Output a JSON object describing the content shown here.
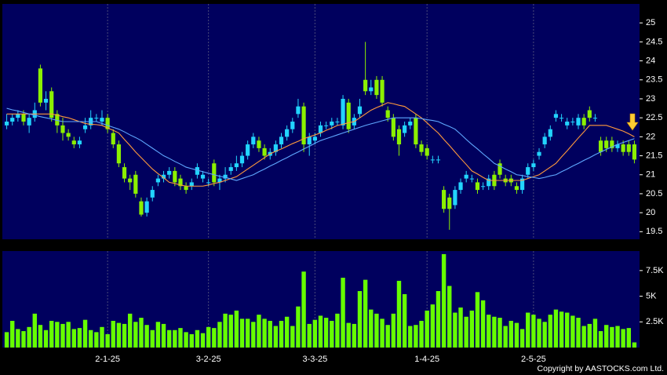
{
  "chart_data": [
    {
      "type": "candlestick",
      "open": [
        22.3,
        22.4,
        22.5,
        22.6,
        22.3,
        22.5,
        23.8,
        22.9,
        23.2,
        22.6,
        22.3,
        22.1,
        21.9,
        21.8,
        22.2,
        22.3,
        22.5,
        22.4,
        22.5,
        22.1,
        21.8,
        21.2,
        20.9,
        21.0,
        20.3,
        20.0,
        20.4,
        20.8,
        20.9,
        21.0,
        21.1,
        20.9,
        20.7,
        20.7,
        21.0,
        20.9,
        20.8,
        21.3,
        20.8,
        20.9,
        21.1,
        21.2,
        21.3,
        21.5,
        21.8,
        21.9,
        21.7,
        21.5,
        21.6,
        21.8,
        22.0,
        22.2,
        22.6,
        22.8,
        21.8,
        21.9,
        22.1,
        22.3,
        22.3,
        22.4,
        22.3,
        22.9,
        22.3,
        22.6,
        23.5,
        23.2,
        23.5,
        23.5,
        22.7,
        22.5,
        22.2,
        22.1,
        22.3,
        22.5,
        21.8,
        21.7,
        21.4,
        21.4,
        20.6,
        20.4,
        20.2,
        20.6,
        20.9,
        20.9,
        20.8,
        20.7,
        20.7,
        21.0,
        21.3,
        20.9,
        20.9,
        20.7,
        20.6,
        21.0,
        21.2,
        21.5,
        21.8,
        22.0,
        22.5,
        22.5,
        22.3,
        22.4,
        22.3,
        22.5,
        22.7,
        22.5,
        21.9,
        21.9,
        21.9,
        21.7,
        21.8,
        21.8,
        21.8
      ],
      "high": [
        22.6,
        22.6,
        22.7,
        22.7,
        22.6,
        22.9,
        23.9,
        23.2,
        23.3,
        22.7,
        22.5,
        22.2,
        22.0,
        22.0,
        22.5,
        22.7,
        22.6,
        22.7,
        22.6,
        22.2,
        21.9,
        21.3,
        21.0,
        21.1,
        20.4,
        20.4,
        20.7,
        21.0,
        21.1,
        21.2,
        21.2,
        21.0,
        20.8,
        20.9,
        21.3,
        21.1,
        20.9,
        21.4,
        21.0,
        21.2,
        21.3,
        21.5,
        21.6,
        21.9,
        22.1,
        22.0,
        21.8,
        21.7,
        21.9,
        22.1,
        22.3,
        22.5,
        23.0,
        22.9,
        22.1,
        22.1,
        22.4,
        22.4,
        22.5,
        22.5,
        23.1,
        23.0,
        22.6,
        23.0,
        24.5,
        23.5,
        23.6,
        23.6,
        22.8,
        22.6,
        22.3,
        22.4,
        22.5,
        22.6,
        21.9,
        21.8,
        21.5,
        21.5,
        20.7,
        20.5,
        20.7,
        20.9,
        21.1,
        21.0,
        20.9,
        20.8,
        21.0,
        21.1,
        21.4,
        21.0,
        21.0,
        20.8,
        21.0,
        21.3,
        21.4,
        21.7,
        22.1,
        22.3,
        22.7,
        22.6,
        22.5,
        22.5,
        22.6,
        22.6,
        22.8,
        22.6,
        22.0,
        22.0,
        22.0,
        21.9,
        21.9,
        21.9,
        21.9
      ],
      "low": [
        22.2,
        22.3,
        22.4,
        22.3,
        22.1,
        22.4,
        22.8,
        22.7,
        22.4,
        22.1,
        21.9,
        21.9,
        21.7,
        21.7,
        22.1,
        22.2,
        22.4,
        22.3,
        22.1,
        21.7,
        21.2,
        20.8,
        20.6,
        20.4,
        19.9,
        19.9,
        20.3,
        20.7,
        20.8,
        20.9,
        20.7,
        20.6,
        20.5,
        20.6,
        20.9,
        20.8,
        20.7,
        20.7,
        20.6,
        20.8,
        21.0,
        21.1,
        21.2,
        21.4,
        21.7,
        21.6,
        21.4,
        21.4,
        21.5,
        21.7,
        21.9,
        22.1,
        22.5,
        21.6,
        21.5,
        21.8,
        22.0,
        22.2,
        22.2,
        22.3,
        22.2,
        22.1,
        22.2,
        22.5,
        23.1,
        23.1,
        23.0,
        22.8,
        22.4,
        21.9,
        21.5,
        22.0,
        22.2,
        21.7,
        21.5,
        21.4,
        21.3,
        21.3,
        20.0,
        19.55,
        20.1,
        20.5,
        20.8,
        20.8,
        20.5,
        20.6,
        20.6,
        20.6,
        20.9,
        20.7,
        20.7,
        20.5,
        20.5,
        20.9,
        21.1,
        21.4,
        21.7,
        21.9,
        22.4,
        22.4,
        22.2,
        22.3,
        22.2,
        22.2,
        22.4,
        22.4,
        21.5,
        21.6,
        21.6,
        21.6,
        21.5,
        21.5,
        21.3
      ],
      "close": [
        22.4,
        22.5,
        22.6,
        22.4,
        22.5,
        22.7,
        22.9,
        23.0,
        22.5,
        22.3,
        22.1,
        22.0,
        21.8,
        21.9,
        22.3,
        22.5,
        22.5,
        22.5,
        22.2,
        21.8,
        21.3,
        20.9,
        20.8,
        20.5,
        19.95,
        20.3,
        20.6,
        20.9,
        21.0,
        21.1,
        20.8,
        20.7,
        20.6,
        20.8,
        21.2,
        21.0,
        20.8,
        20.8,
        20.9,
        21.0,
        21.2,
        21.3,
        21.5,
        21.8,
        22.0,
        21.7,
        21.5,
        21.6,
        21.8,
        22.0,
        22.2,
        22.4,
        22.8,
        21.8,
        22.0,
        22.0,
        22.3,
        22.3,
        22.4,
        22.4,
        23.0,
        22.2,
        22.5,
        22.8,
        23.2,
        23.3,
        23.1,
        22.9,
        22.5,
        22.0,
        21.8,
        22.3,
        22.4,
        21.8,
        21.6,
        21.5,
        21.4,
        21.4,
        20.1,
        20.1,
        20.6,
        20.8,
        21.0,
        20.9,
        20.6,
        20.7,
        20.9,
        20.7,
        21.0,
        20.8,
        20.8,
        20.6,
        20.9,
        21.2,
        21.3,
        21.6,
        22.0,
        22.2,
        22.6,
        22.5,
        22.4,
        22.4,
        22.5,
        22.3,
        22.5,
        22.5,
        21.6,
        21.7,
        21.7,
        21.8,
        21.6,
        21.6,
        21.4
      ],
      "up_color": "#22d4ff",
      "down_color": "#8cf000",
      "series": [
        {
          "color": "#ff9a3c",
          "values": [
            22.6,
            22.6,
            22.6,
            22.6,
            22.6,
            22.6,
            22.6,
            22.6,
            22.6,
            22.57,
            22.53,
            22.5,
            22.45,
            22.4,
            22.35,
            22.33,
            22.32,
            22.3,
            22.23,
            22.17,
            22.1,
            21.93,
            21.77,
            21.6,
            21.45,
            21.3,
            21.15,
            21.03,
            20.92,
            20.8,
            20.77,
            20.73,
            20.7,
            20.7,
            20.7,
            20.7,
            20.73,
            20.77,
            20.8,
            20.85,
            20.9,
            20.95,
            21.05,
            21.15,
            21.25,
            21.35,
            21.45,
            21.55,
            21.62,
            21.68,
            21.75,
            21.82,
            21.88,
            21.95,
            22.0,
            22.05,
            22.1,
            22.17,
            22.23,
            22.3,
            22.33,
            22.37,
            22.4,
            22.5,
            22.6,
            22.7,
            22.77,
            22.83,
            22.9,
            22.87,
            22.83,
            22.8,
            22.7,
            22.6,
            22.5,
            22.37,
            22.23,
            22.1,
            21.93,
            21.77,
            21.6,
            21.43,
            21.27,
            21.1,
            21.02,
            20.93,
            20.85,
            20.85,
            20.85,
            20.85,
            20.85,
            20.85,
            20.85,
            20.9,
            20.95,
            21.0,
            21.1,
            21.2,
            21.3,
            21.47,
            21.63,
            21.8,
            21.97,
            22.13,
            22.3,
            22.3,
            22.3,
            22.3,
            22.25,
            22.2,
            22.15,
            22.08,
            22.0
          ]
        },
        {
          "color": "#5fa8ff",
          "values": [
            22.75,
            22.71,
            22.68,
            22.64,
            22.6,
            22.57,
            22.53,
            22.5,
            22.47,
            22.43,
            22.4,
            22.4,
            22.4,
            22.4,
            22.4,
            22.4,
            22.4,
            22.35,
            22.3,
            22.25,
            22.2,
            22.13,
            22.05,
            21.98,
            21.9,
            21.8,
            21.7,
            21.6,
            21.5,
            21.43,
            21.35,
            21.28,
            21.2,
            21.16,
            21.12,
            21.08,
            21.04,
            21.0,
            20.96,
            20.93,
            20.89,
            20.85,
            20.9,
            20.95,
            21.0,
            21.08,
            21.15,
            21.23,
            21.3,
            21.38,
            21.45,
            21.53,
            21.6,
            21.68,
            21.75,
            21.83,
            21.9,
            21.95,
            22.0,
            22.05,
            22.1,
            22.15,
            22.2,
            22.25,
            22.3,
            22.34,
            22.38,
            22.42,
            22.46,
            22.5,
            22.5,
            22.5,
            22.5,
            22.5,
            22.48,
            22.45,
            22.43,
            22.4,
            22.33,
            22.27,
            22.2,
            22.07,
            21.93,
            21.8,
            21.68,
            21.55,
            21.43,
            21.3,
            21.23,
            21.15,
            21.08,
            21.0,
            20.98,
            20.95,
            20.93,
            20.9,
            20.93,
            20.97,
            21.0,
            21.08,
            21.15,
            21.23,
            21.3,
            21.38,
            21.45,
            21.53,
            21.6,
            21.67,
            21.73,
            21.8,
            21.85,
            21.9,
            21.95
          ]
        }
      ],
      "ylim": [
        19.3,
        25.5
      ],
      "yticks": [
        19.5,
        20,
        20.5,
        21,
        21.5,
        22,
        22.5,
        23,
        23.5,
        24,
        24.5,
        25
      ],
      "grid": true
    },
    {
      "type": "bar",
      "categories": [
        null,
        null,
        null,
        null,
        null,
        null,
        null,
        null,
        null,
        null,
        null,
        null,
        null,
        null,
        null,
        null,
        null,
        null,
        "2-1-25",
        null,
        null,
        null,
        null,
        null,
        null,
        null,
        null,
        null,
        null,
        null,
        null,
        null,
        null,
        null,
        null,
        null,
        "3-2-25",
        null,
        null,
        null,
        null,
        null,
        null,
        null,
        null,
        null,
        null,
        null,
        null,
        null,
        null,
        null,
        null,
        null,
        null,
        "3-3-25",
        null,
        null,
        null,
        null,
        null,
        null,
        null,
        null,
        null,
        null,
        null,
        null,
        null,
        null,
        null,
        null,
        null,
        null,
        null,
        "1-4-25",
        null,
        null,
        null,
        null,
        null,
        null,
        null,
        null,
        null,
        null,
        null,
        null,
        null,
        null,
        null,
        null,
        null,
        null,
        "2-5-25",
        null,
        null,
        null,
        null,
        null,
        null,
        null,
        null,
        null,
        null,
        null,
        null,
        null,
        null,
        null,
        null,
        null,
        null
      ],
      "values": [
        1500,
        2600,
        1800,
        1600,
        2000,
        3300,
        2200,
        1700,
        2600,
        2500,
        2300,
        2500,
        1800,
        1900,
        2700,
        1700,
        1500,
        2000,
        1300,
        2600,
        2400,
        2300,
        3300,
        2500,
        2900,
        2200,
        1700,
        2500,
        2300,
        1700,
        1700,
        1900,
        1500,
        1300,
        1700,
        1400,
        2000,
        1900,
        2500,
        3300,
        3200,
        3600,
        2800,
        2800,
        2500,
        3200,
        2800,
        2600,
        2100,
        2600,
        3000,
        2100,
        4000,
        7400,
        2300,
        2700,
        3100,
        2900,
        2600,
        3300,
        6800,
        2400,
        2300,
        5500,
        6600,
        3700,
        3300,
        2800,
        2200,
        3300,
        6500,
        5200,
        2100,
        2200,
        2600,
        3600,
        4200,
        5500,
        9100,
        6000,
        3400,
        3900,
        3000,
        3600,
        5400,
        4600,
        3200,
        3000,
        2900,
        2100,
        2600,
        2400,
        1800,
        3400,
        3200,
        2800,
        2500,
        3200,
        3700,
        3500,
        3400,
        3100,
        2900,
        2100,
        2300,
        2800,
        1600,
        2200,
        2000,
        2100,
        1800,
        1900,
        500
      ],
      "color": "#66ff00",
      "ylim": [
        0,
        9400
      ],
      "yticks": [
        {
          "value": 2500,
          "label": "2.5K"
        },
        {
          "value": 5000,
          "label": "5K"
        },
        {
          "value": 7500,
          "label": "7.5K"
        }
      ],
      "grid": true
    }
  ],
  "copyright": "Copyright by AASTOCKS.com Ltd."
}
